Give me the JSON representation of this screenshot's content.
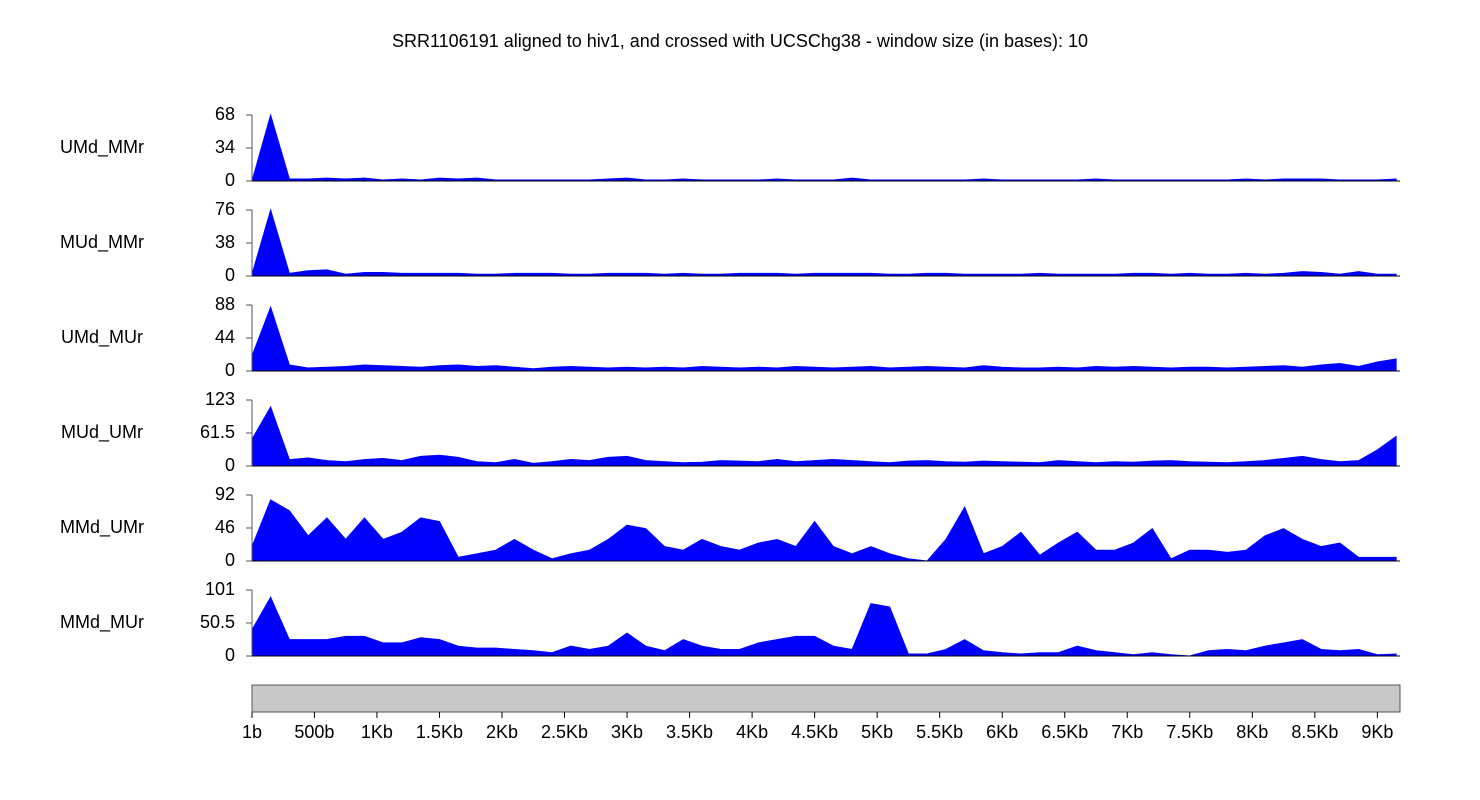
{
  "title": "SRR1106191 aligned to hiv1, and crossed with UCSChg38 - window size (in bases):  10",
  "genome_axis": {
    "xlim": [
      1,
      9181
    ],
    "xticks": [
      {
        "value": 1,
        "label": "1b"
      },
      {
        "value": 500,
        "label": "500b"
      },
      {
        "value": 1000,
        "label": "1Kb"
      },
      {
        "value": 1500,
        "label": "1.5Kb"
      },
      {
        "value": 2000,
        "label": "2Kb"
      },
      {
        "value": 2500,
        "label": "2.5Kb"
      },
      {
        "value": 3000,
        "label": "3Kb"
      },
      {
        "value": 3500,
        "label": "3.5Kb"
      },
      {
        "value": 4000,
        "label": "4Kb"
      },
      {
        "value": 4500,
        "label": "4.5Kb"
      },
      {
        "value": 5000,
        "label": "5Kb"
      },
      {
        "value": 5500,
        "label": "5.5Kb"
      },
      {
        "value": 6000,
        "label": "6Kb"
      },
      {
        "value": 6500,
        "label": "6.5Kb"
      },
      {
        "value": 7000,
        "label": "7Kb"
      },
      {
        "value": 7500,
        "label": "7.5Kb"
      },
      {
        "value": 8000,
        "label": "8Kb"
      },
      {
        "value": 8500,
        "label": "8.5Kb"
      },
      {
        "value": 9000,
        "label": "9Kb"
      }
    ]
  },
  "chart_data": [
    {
      "type": "area",
      "name": "UMd_MMr",
      "color": "#0000ff",
      "ylim": [
        0,
        68
      ],
      "yticks": [
        0,
        34,
        68
      ],
      "x": [
        1,
        150,
        300,
        450,
        600,
        750,
        900,
        1050,
        1200,
        1350,
        1500,
        1650,
        1800,
        1950,
        2100,
        2250,
        2400,
        2550,
        2700,
        2850,
        3000,
        3150,
        3300,
        3450,
        3600,
        3750,
        3900,
        4050,
        4200,
        4350,
        4500,
        4650,
        4800,
        4950,
        5100,
        5250,
        5400,
        5550,
        5700,
        5850,
        6000,
        6150,
        6300,
        6450,
        6600,
        6750,
        6900,
        7050,
        7200,
        7350,
        7500,
        7650,
        7800,
        7950,
        8100,
        8250,
        8400,
        8550,
        8700,
        8850,
        9000,
        9150
      ],
      "values": [
        0,
        68,
        2,
        2,
        3,
        2,
        3,
        1,
        2,
        1,
        3,
        2,
        3,
        1,
        1,
        1,
        1,
        1,
        1,
        2,
        3,
        1,
        1,
        2,
        1,
        1,
        1,
        1,
        2,
        1,
        1,
        1,
        3,
        1,
        1,
        1,
        1,
        1,
        1,
        2,
        1,
        1,
        1,
        1,
        1,
        2,
        1,
        1,
        1,
        1,
        1,
        1,
        1,
        2,
        1,
        2,
        2,
        2,
        1,
        1,
        1,
        2
      ]
    },
    {
      "type": "area",
      "name": "MUd_MMr",
      "color": "#0000ff",
      "ylim": [
        0,
        76
      ],
      "yticks": [
        0,
        38,
        76
      ],
      "x": [
        1,
        150,
        300,
        450,
        600,
        750,
        900,
        1050,
        1200,
        1350,
        1500,
        1650,
        1800,
        1950,
        2100,
        2250,
        2400,
        2550,
        2700,
        2850,
        3000,
        3150,
        3300,
        3450,
        3600,
        3750,
        3900,
        4050,
        4200,
        4350,
        4500,
        4650,
        4800,
        4950,
        5100,
        5250,
        5400,
        5550,
        5700,
        5850,
        6000,
        6150,
        6300,
        6450,
        6600,
        6750,
        6900,
        7050,
        7200,
        7350,
        7500,
        7650,
        7800,
        7950,
        8100,
        8250,
        8400,
        8550,
        8700,
        8850,
        9000,
        9150
      ],
      "values": [
        2,
        76,
        3,
        6,
        7,
        2,
        4,
        4,
        3,
        3,
        3,
        3,
        2,
        2,
        3,
        3,
        3,
        2,
        2,
        3,
        3,
        3,
        2,
        3,
        2,
        2,
        3,
        3,
        3,
        2,
        3,
        3,
        3,
        3,
        2,
        2,
        3,
        3,
        2,
        2,
        2,
        2,
        3,
        2,
        2,
        2,
        2,
        3,
        3,
        2,
        3,
        2,
        2,
        3,
        2,
        3,
        5,
        4,
        2,
        5,
        2,
        2
      ]
    },
    {
      "type": "area",
      "name": "UMd_MUr",
      "color": "#0000ff",
      "ylim": [
        0,
        88
      ],
      "yticks": [
        0,
        44,
        88
      ],
      "x": [
        1,
        150,
        300,
        450,
        600,
        750,
        900,
        1050,
        1200,
        1350,
        1500,
        1650,
        1800,
        1950,
        2100,
        2250,
        2400,
        2550,
        2700,
        2850,
        3000,
        3150,
        3300,
        3450,
        3600,
        3750,
        3900,
        4050,
        4200,
        4350,
        4500,
        4650,
        4800,
        4950,
        5100,
        5250,
        5400,
        5550,
        5700,
        5850,
        6000,
        6150,
        6300,
        6450,
        6600,
        6750,
        6900,
        7050,
        7200,
        7350,
        7500,
        7650,
        7800,
        7950,
        8100,
        8250,
        8400,
        8550,
        8700,
        8850,
        9000,
        9150
      ],
      "values": [
        20,
        85,
        8,
        4,
        5,
        6,
        8,
        7,
        6,
        5,
        7,
        8,
        6,
        7,
        5,
        3,
        5,
        6,
        5,
        4,
        5,
        4,
        5,
        4,
        6,
        5,
        4,
        5,
        4,
        6,
        5,
        4,
        5,
        6,
        4,
        5,
        6,
        5,
        4,
        7,
        5,
        4,
        4,
        5,
        4,
        6,
        5,
        6,
        5,
        4,
        5,
        5,
        4,
        5,
        6,
        7,
        5,
        8,
        10,
        6,
        12,
        16
      ]
    },
    {
      "type": "area",
      "name": "MUd_UMr",
      "color": "#0000ff",
      "ylim": [
        0,
        123
      ],
      "yticks": [
        0,
        61.5,
        123
      ],
      "x": [
        1,
        150,
        300,
        450,
        600,
        750,
        900,
        1050,
        1200,
        1350,
        1500,
        1650,
        1800,
        1950,
        2100,
        2250,
        2400,
        2550,
        2700,
        2850,
        3000,
        3150,
        3300,
        3450,
        3600,
        3750,
        3900,
        4050,
        4200,
        4350,
        4500,
        4650,
        4800,
        4950,
        5100,
        5250,
        5400,
        5550,
        5700,
        5850,
        6000,
        6150,
        6300,
        6450,
        6600,
        6750,
        6900,
        7050,
        7200,
        7350,
        7500,
        7650,
        7800,
        7950,
        8100,
        8250,
        8400,
        8550,
        8700,
        8850,
        9000,
        9150
      ],
      "values": [
        50,
        110,
        12,
        15,
        10,
        8,
        12,
        14,
        10,
        18,
        20,
        16,
        8,
        6,
        12,
        5,
        8,
        12,
        10,
        16,
        18,
        10,
        8,
        6,
        7,
        10,
        9,
        8,
        12,
        8,
        10,
        12,
        10,
        8,
        6,
        9,
        10,
        8,
        7,
        9,
        8,
        7,
        6,
        10,
        8,
        6,
        8,
        7,
        9,
        10,
        8,
        7,
        6,
        8,
        10,
        14,
        18,
        12,
        8,
        10,
        30,
        55
      ]
    },
    {
      "type": "area",
      "name": "MMd_UMr",
      "color": "#0000ff",
      "ylim": [
        0,
        92
      ],
      "yticks": [
        0,
        46,
        92
      ],
      "x": [
        1,
        150,
        300,
        450,
        600,
        750,
        900,
        1050,
        1200,
        1350,
        1500,
        1650,
        1800,
        1950,
        2100,
        2250,
        2400,
        2550,
        2700,
        2850,
        3000,
        3150,
        3300,
        3450,
        3600,
        3750,
        3900,
        4050,
        4200,
        4350,
        4500,
        4650,
        4800,
        4950,
        5100,
        5250,
        5400,
        5550,
        5700,
        5850,
        6000,
        6150,
        6300,
        6450,
        6600,
        6750,
        6900,
        7050,
        7200,
        7350,
        7500,
        7650,
        7800,
        7950,
        8100,
        8250,
        8400,
        8550,
        8700,
        8850,
        9000,
        9150
      ],
      "values": [
        20,
        85,
        70,
        35,
        60,
        30,
        60,
        30,
        40,
        60,
        55,
        5,
        10,
        15,
        30,
        15,
        3,
        10,
        15,
        30,
        50,
        45,
        20,
        15,
        30,
        20,
        15,
        25,
        30,
        20,
        55,
        20,
        10,
        20,
        10,
        3,
        0,
        30,
        75,
        10,
        20,
        40,
        8,
        25,
        40,
        15,
        15,
        25,
        45,
        3,
        15,
        15,
        12,
        15,
        35,
        45,
        30,
        20,
        25,
        5,
        5,
        5
      ]
    },
    {
      "type": "area",
      "name": "MMd_MUr",
      "color": "#0000ff",
      "ylim": [
        0,
        101
      ],
      "yticks": [
        0,
        50.5,
        101
      ],
      "x": [
        1,
        150,
        300,
        450,
        600,
        750,
        900,
        1050,
        1200,
        1350,
        1500,
        1650,
        1800,
        1950,
        2100,
        2250,
        2400,
        2550,
        2700,
        2850,
        3000,
        3150,
        3300,
        3450,
        3600,
        3750,
        3900,
        4050,
        4200,
        4350,
        4500,
        4650,
        4800,
        4950,
        5100,
        5250,
        5400,
        5550,
        5700,
        5850,
        6000,
        6150,
        6300,
        6450,
        6600,
        6750,
        6900,
        7050,
        7200,
        7350,
        7500,
        7650,
        7800,
        7950,
        8100,
        8250,
        8400,
        8550,
        8700,
        8850,
        9000,
        9150
      ],
      "values": [
        40,
        90,
        25,
        25,
        25,
        30,
        30,
        20,
        20,
        28,
        25,
        15,
        12,
        12,
        10,
        8,
        5,
        15,
        10,
        15,
        35,
        15,
        8,
        25,
        15,
        10,
        10,
        20,
        25,
        30,
        30,
        15,
        10,
        80,
        75,
        3,
        3,
        10,
        25,
        8,
        5,
        3,
        5,
        5,
        15,
        8,
        5,
        2,
        5,
        2,
        0,
        8,
        10,
        8,
        15,
        20,
        25,
        10,
        8,
        10,
        2,
        3
      ]
    }
  ]
}
